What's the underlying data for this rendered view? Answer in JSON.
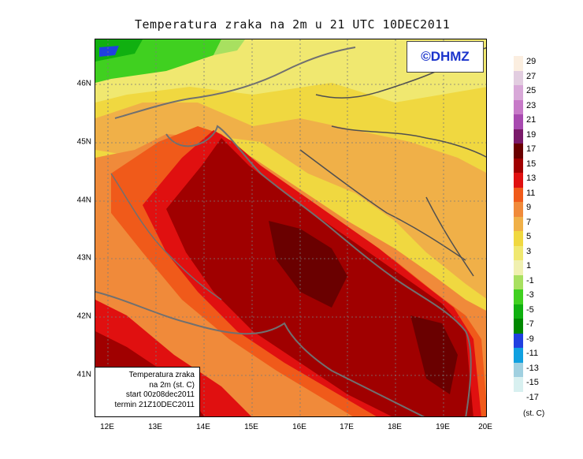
{
  "title": "Temperatura zraka na 2m u 21 UTC 10DEC2011",
  "logo": "©DHMZ",
  "info": {
    "line1": "Temperatura zraka",
    "line2": "na 2m (st. C)",
    "line3": "start 00z08dec2011",
    "line4": "termin 21Z10DEC2011"
  },
  "x_ticks": [
    "12E",
    "13E",
    "14E",
    "15E",
    "16E",
    "17E",
    "18E",
    "19E",
    "20E"
  ],
  "y_ticks": [
    "46N",
    "45N",
    "44N",
    "43N",
    "42N",
    "41N"
  ],
  "legend": {
    "unit": "(st. C)",
    "labels": [
      "29",
      "27",
      "25",
      "23",
      "21",
      "19",
      "17",
      "15",
      "13",
      "11",
      "9",
      "7",
      "5",
      "3",
      "1",
      "-1",
      "-3",
      "-5",
      "-7",
      "-9",
      "-11",
      "-13",
      "-15",
      "-17"
    ],
    "colors": [
      "#fbeee0",
      "#e2cde0",
      "#d8a8d8",
      "#c77ac8",
      "#a84ab0",
      "#7a1a6a",
      "#6a0000",
      "#a00000",
      "#e01010",
      "#f05a1a",
      "#f08a3a",
      "#f0b048",
      "#f0d840",
      "#f0e870",
      "#f0f0b0",
      "#a8e060",
      "#40d020",
      "#10b010",
      "#008800",
      "#2040e0",
      "#10a0e0",
      "#a0d0e0",
      "#d8f0f0",
      "#ffffff"
    ]
  }
}
